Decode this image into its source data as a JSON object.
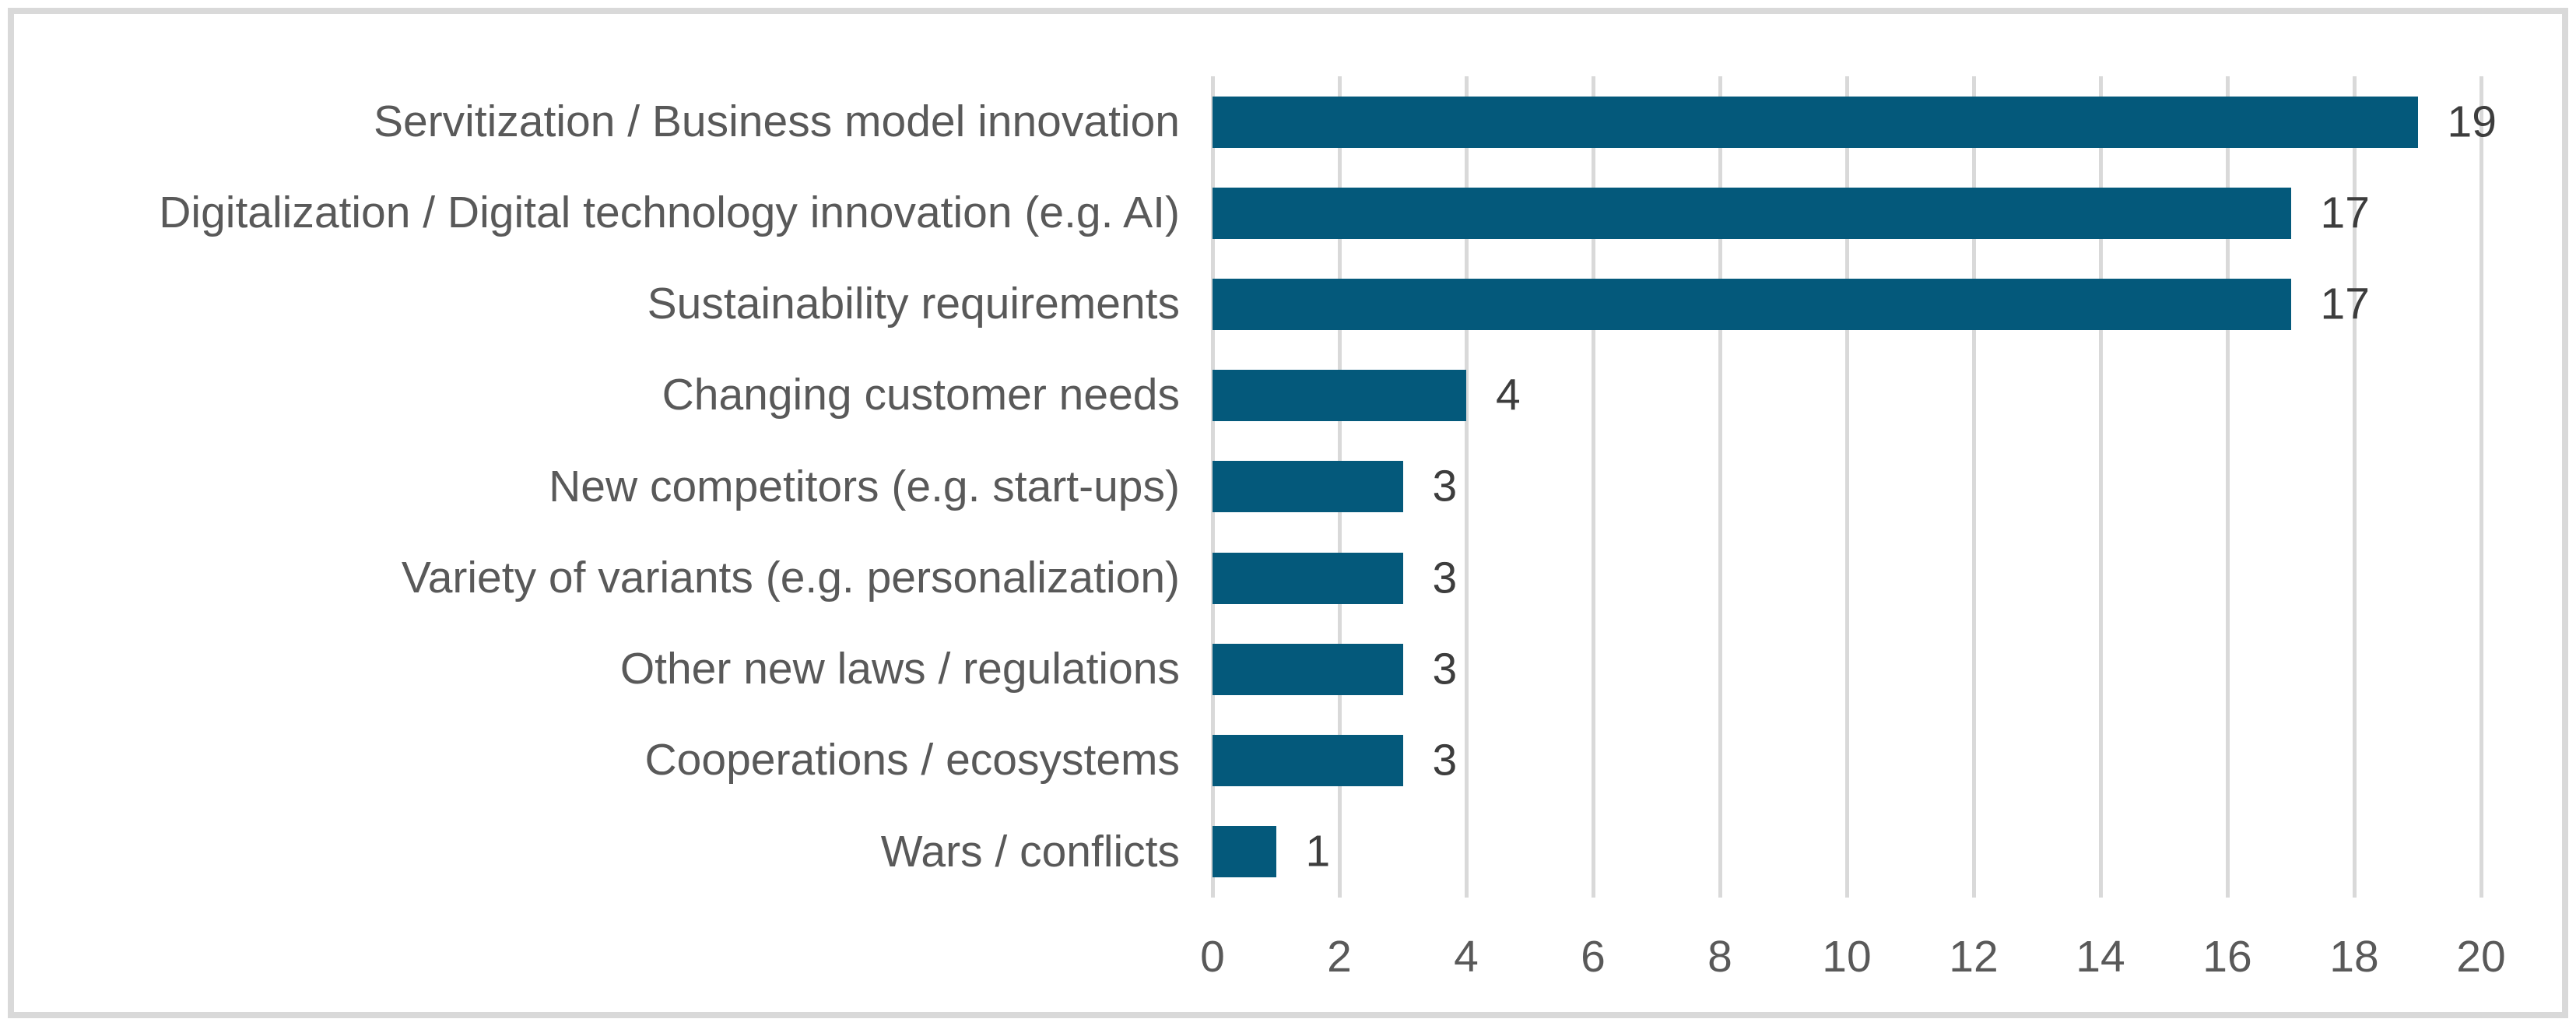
{
  "chart_data": {
    "type": "bar",
    "orientation": "horizontal",
    "title": "",
    "xlabel": "",
    "ylabel": "",
    "categories": [
      "Servitization / Business model innovation",
      "Digitalization / Digital technology innovation (e.g. AI)",
      "Sustainability requirements",
      "Changing customer needs",
      "New competitors (e.g. start-ups)",
      "Variety of variants (e.g. personalization)",
      "Other new laws / regulations",
      "Cooperations / ecosystems",
      "Wars / conflicts"
    ],
    "values": [
      19,
      17,
      17,
      4,
      3,
      3,
      3,
      3,
      1
    ],
    "data_labels": [
      "19",
      "17",
      "17",
      "4",
      "3",
      "3",
      "3",
      "3",
      "1"
    ],
    "x_ticks": [
      0,
      2,
      4,
      6,
      8,
      10,
      12,
      14,
      16,
      18,
      20
    ],
    "xlim": [
      0,
      20
    ],
    "grid": "vertical-gridlines",
    "legend": "none",
    "colors": {
      "bar": "#04597B",
      "gridline": "#D9D9D9",
      "frame_border": "#D9D9D9",
      "category_label": "#595959",
      "tick_label": "#595959",
      "value_label": "#3D3D3D",
      "background": "#FFFFFF"
    }
  }
}
